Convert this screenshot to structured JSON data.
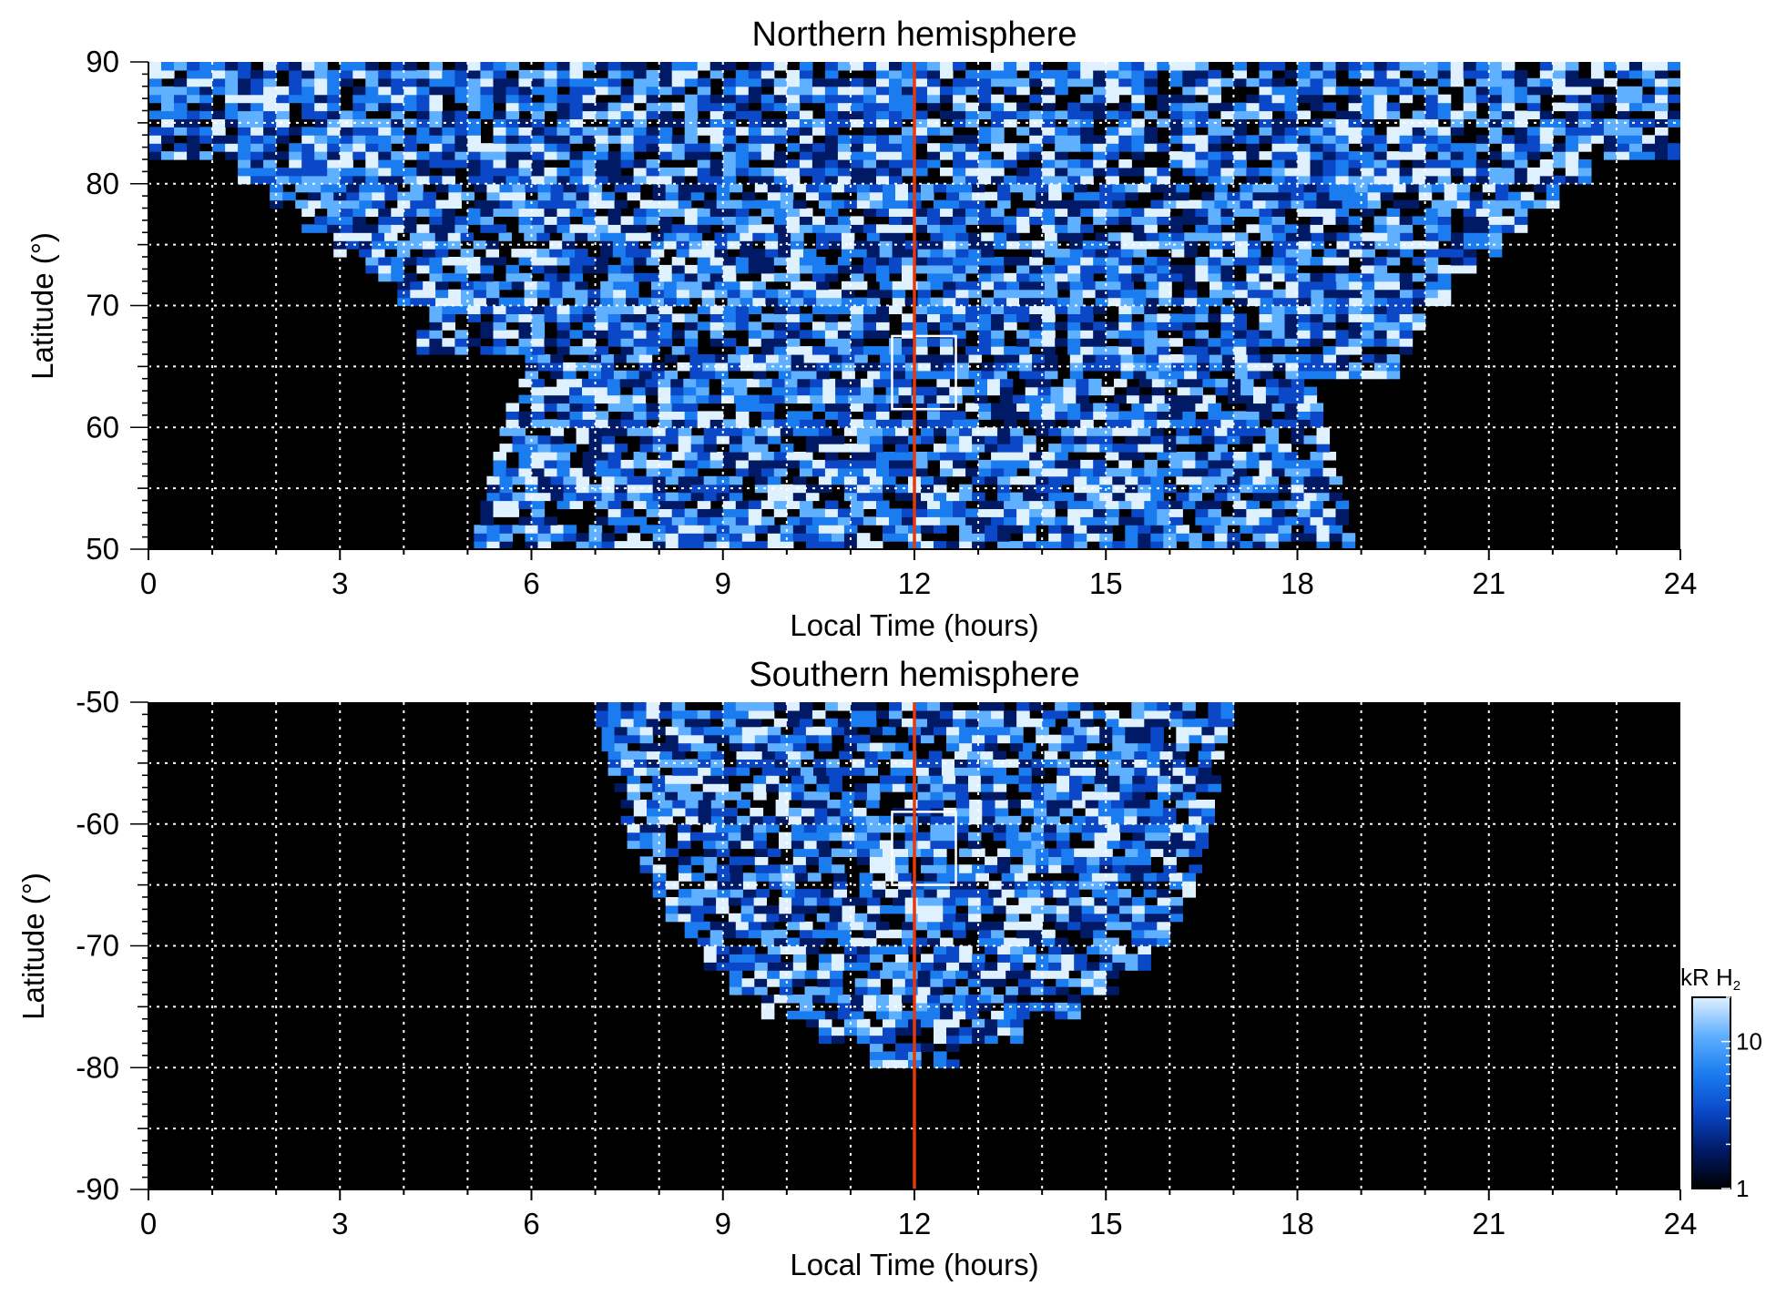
{
  "chart_data": [
    {
      "type": "heatmap",
      "title": "Northern hemisphere",
      "xlabel": "Local Time (hours)",
      "ylabel": "Latitude (°)",
      "xlim": [
        0,
        24
      ],
      "ylim": [
        50,
        90
      ],
      "xticks": [
        "0",
        "3",
        "6",
        "9",
        "12",
        "15",
        "18",
        "21",
        "24"
      ],
      "yticks": [
        "50",
        "60",
        "70",
        "80",
        "90"
      ],
      "grid": true,
      "marker_line_local_time": 12,
      "marker_line_color": "#e03a10",
      "box": {
        "x": [
          11.65,
          12.65
        ],
        "y": [
          61.5,
          67.5
        ]
      },
      "coverage": {
        "lat_edges": [
          50,
          52,
          54,
          56,
          58,
          60,
          62,
          64,
          66,
          68,
          70,
          72,
          74,
          76,
          78,
          80,
          82,
          84,
          86,
          88,
          90
        ],
        "lt_start": [
          5.1,
          5.2,
          5.3,
          5.4,
          5.5,
          5.6,
          5.8,
          5.9,
          4.2,
          4.4,
          3.9,
          3.4,
          2.9,
          2.4,
          1.9,
          1.4,
          0.0,
          0.0,
          0.0,
          0.0
        ],
        "lt_end": [
          18.9,
          18.8,
          18.7,
          18.6,
          18.5,
          18.4,
          18.3,
          19.6,
          19.8,
          20.0,
          20.4,
          20.8,
          21.2,
          21.6,
          22.1,
          22.6,
          24.0,
          24.0,
          24.0,
          24.0
        ]
      }
    },
    {
      "type": "heatmap",
      "title": "Southern hemisphere",
      "xlabel": "Local Time (hours)",
      "ylabel": "Latitude (°)",
      "xlim": [
        0,
        24
      ],
      "ylim": [
        -90,
        -50
      ],
      "xticks": [
        "0",
        "3",
        "6",
        "9",
        "12",
        "15",
        "18",
        "21",
        "24"
      ],
      "yticks": [
        "-90",
        "-80",
        "-70",
        "-60",
        "-50"
      ],
      "grid": true,
      "marker_line_local_time": 12,
      "marker_line_color": "#e03a10",
      "box": {
        "x": [
          11.65,
          12.65
        ],
        "y": [
          -65,
          -59
        ]
      },
      "coverage": {
        "lat_edges": [
          -80,
          -78,
          -76,
          -74,
          -72,
          -70,
          -68,
          -66,
          -64,
          -62,
          -60,
          -58,
          -56,
          -54,
          -52,
          -50
        ],
        "lt_start": [
          11.3,
          10.3,
          9.6,
          9.1,
          8.7,
          8.4,
          8.1,
          7.9,
          7.7,
          7.5,
          7.4,
          7.3,
          7.2,
          7.1,
          7.0
        ],
        "lt_end": [
          12.7,
          13.7,
          14.6,
          15.2,
          15.7,
          16.0,
          16.2,
          16.4,
          16.5,
          16.6,
          16.7,
          16.8,
          16.85,
          16.9,
          17.0
        ]
      }
    }
  ],
  "colorbar": {
    "label_unit": "kR H",
    "label_sub": "2",
    "ticks": [
      "10",
      "1"
    ],
    "scale": "log",
    "range": [
      1,
      20
    ],
    "colors": [
      "#000000",
      "#001a66",
      "#0a48c8",
      "#1b7cf0",
      "#5fb0ff",
      "#dff0ff"
    ]
  }
}
